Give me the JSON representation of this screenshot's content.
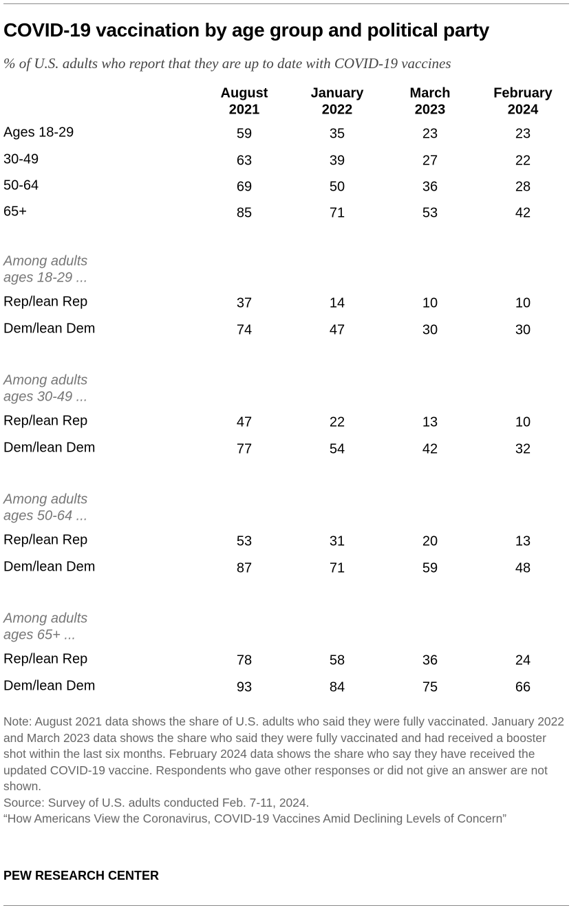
{
  "header": {
    "title": "COVID-19 vaccination by age group and political party",
    "subtitle": "% of U.S. adults who report that they are up to date with COVID-19 vaccines"
  },
  "table": {
    "columns": [
      [
        "August",
        "2021"
      ],
      [
        "January",
        "2022"
      ],
      [
        "March",
        "2023"
      ],
      [
        "February",
        "2024"
      ]
    ],
    "rows": [
      {
        "label": "Ages 18-29",
        "values": [
          59,
          35,
          23,
          23
        ]
      },
      {
        "label": "30-49",
        "values": [
          63,
          39,
          27,
          22
        ]
      },
      {
        "label": "50-64",
        "values": [
          69,
          50,
          36,
          28
        ]
      },
      {
        "label": "65+",
        "values": [
          85,
          71,
          53,
          42
        ]
      }
    ],
    "groups": [
      {
        "heading": [
          "Among adults",
          "ages 18-29 ..."
        ],
        "rows": [
          {
            "label": "Rep/lean Rep",
            "values": [
              37,
              14,
              10,
              10
            ]
          },
          {
            "label": "Dem/lean Dem",
            "values": [
              74,
              47,
              30,
              30
            ]
          }
        ]
      },
      {
        "heading": [
          "Among adults",
          "ages 30-49 ..."
        ],
        "rows": [
          {
            "label": "Rep/lean Rep",
            "values": [
              47,
              22,
              13,
              10
            ]
          },
          {
            "label": "Dem/lean Dem",
            "values": [
              77,
              54,
              42,
              32
            ]
          }
        ]
      },
      {
        "heading": [
          "Among adults",
          "ages 50-64 ..."
        ],
        "rows": [
          {
            "label": "Rep/lean Rep",
            "values": [
              53,
              31,
              20,
              13
            ]
          },
          {
            "label": "Dem/lean Dem",
            "values": [
              87,
              71,
              59,
              48
            ]
          }
        ]
      },
      {
        "heading": [
          "Among adults",
          "ages 65+ ..."
        ],
        "rows": [
          {
            "label": "Rep/lean Rep",
            "values": [
              78,
              58,
              36,
              24
            ]
          },
          {
            "label": "Dem/lean Dem",
            "values": [
              93,
              84,
              75,
              66
            ]
          }
        ]
      }
    ]
  },
  "footer": {
    "note": "Note: August 2021 data shows the share of U.S. adults who said they were fully vaccinated. January 2022 and March 2023 data shows the share who said they were fully vaccinated and had received a booster shot within the last six months. February 2024 data shows the share who say they have received the updated COVID-19 vaccine. Respondents who gave other responses or did not give an answer are not shown.",
    "source": "Source: Survey of U.S. adults conducted Feb. 7-11, 2024.",
    "citation": "“How Americans View the Coronavirus, COVID-19 Vaccines Amid Declining Levels of Concern”",
    "brand": "PEW RESEARCH CENTER"
  }
}
